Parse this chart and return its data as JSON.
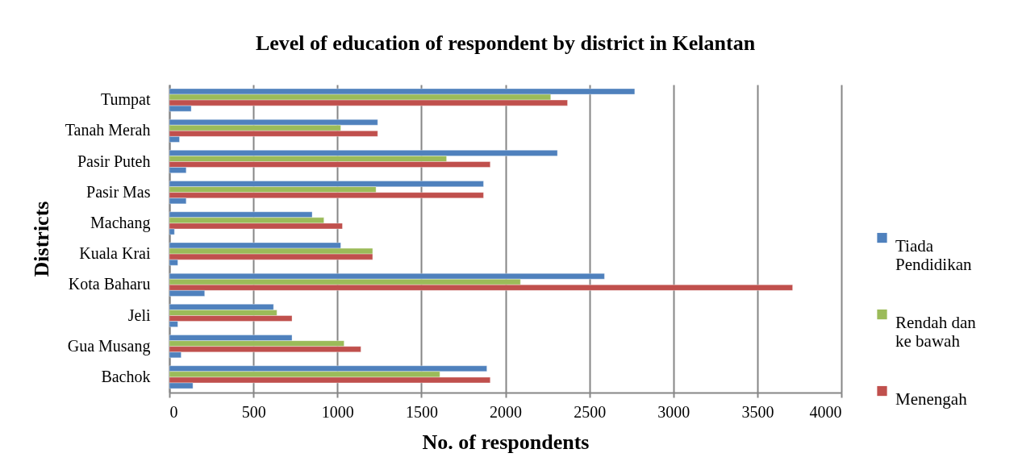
{
  "chart_data": {
    "type": "bar",
    "orientation": "horizontal",
    "title": "Level of education of respondent by district in Kelantan",
    "xlabel": "No. of respondents",
    "ylabel": "Districts",
    "categories": [
      "Tumpat",
      "Tanah Merah",
      "Pasir Puteh",
      "Pasir Mas",
      "Machang",
      "Kuala Krai",
      "Kota Baharu",
      "Jeli",
      "Gua Musang",
      "Bachok"
    ],
    "series": [
      {
        "name": "Tiada Pendidikan",
        "color": "#4f81bd",
        "values": [
          2770,
          1240,
          2310,
          1870,
          850,
          1020,
          2590,
          620,
          730,
          1890
        ]
      },
      {
        "name": "Rendah dan ke bawah",
        "color": "#9bbb59",
        "values": [
          2270,
          1020,
          1650,
          1230,
          920,
          1210,
          2090,
          640,
          1040,
          1610
        ]
      },
      {
        "name": "Menengah",
        "color": "#c0504d",
        "values": [
          2370,
          1240,
          1910,
          1870,
          1030,
          1210,
          3710,
          730,
          1140,
          1910
        ]
      },
      {
        "color": "#4f81bd",
        "values": [
          130,
          60,
          100,
          100,
          30,
          50,
          210,
          50,
          70,
          140
        ]
      }
    ],
    "xlim": [
      0,
      4000
    ],
    "xticks": [
      0,
      500,
      1000,
      1500,
      2000,
      2500,
      3000,
      3500,
      4000
    ],
    "grid": "x",
    "legend": "right"
  }
}
